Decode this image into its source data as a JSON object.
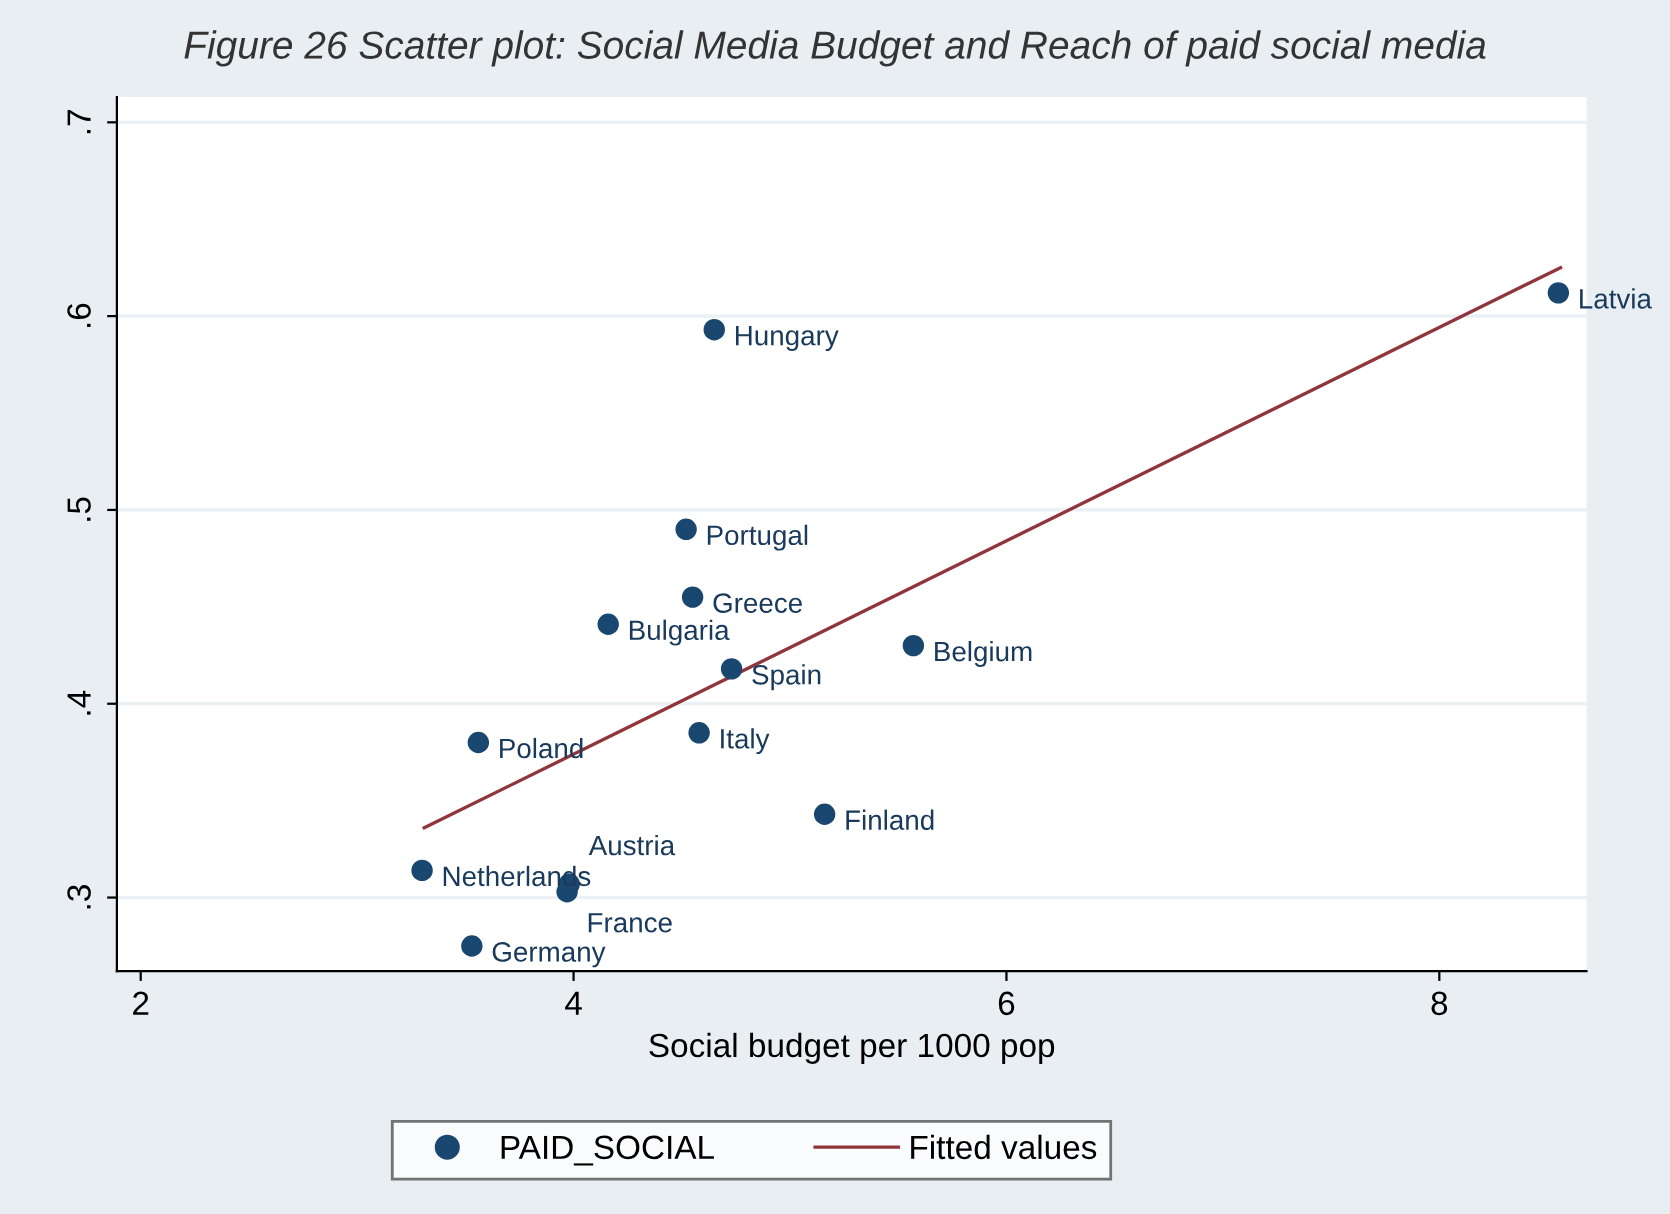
{
  "chart_data": {
    "type": "scatter",
    "title": "Figure 26 Scatter plot: Social Media Budget and Reach of paid social media",
    "xlabel": "Social budget per 1000 pop",
    "xlim": [
      1.89,
      8.68
    ],
    "xticks": [
      2,
      4,
      6,
      8
    ],
    "ylim": [
      0.262,
      0.713
    ],
    "yticks": [
      {
        "value": 0.3,
        "label": ".3"
      },
      {
        "value": 0.4,
        "label": ".4"
      },
      {
        "value": 0.5,
        "label": ".5"
      },
      {
        "value": 0.6,
        "label": ".6"
      },
      {
        "value": 0.7,
        "label": ".7"
      }
    ],
    "grid": "y",
    "legend": "bottom",
    "series": [
      {
        "name": "PAID_SOCIAL",
        "marker": "circle",
        "color": "#1a476f",
        "x": [
          4.65,
          4.52,
          4.55,
          4.16,
          5.57,
          4.73,
          3.56,
          4.58,
          5.16,
          3.3,
          3.98,
          3.97,
          3.53,
          8.55
        ],
        "values": [
          0.593,
          0.49,
          0.455,
          0.441,
          0.43,
          0.418,
          0.38,
          0.385,
          0.343,
          0.314,
          0.307,
          0.303,
          0.275,
          0.612
        ]
      },
      {
        "name": "Fitted values",
        "type": "line",
        "color": "#90353b",
        "x": [
          3.31,
          8.56
        ],
        "values": [
          0.336,
          0.625
        ]
      }
    ],
    "annotations": [
      {
        "text": "Hungary",
        "x": 4.65,
        "y": 0.593
      },
      {
        "text": "Portugal",
        "x": 4.52,
        "y": 0.49
      },
      {
        "text": "Greece",
        "x": 4.55,
        "y": 0.455
      },
      {
        "text": "Bulgaria",
        "x": 4.16,
        "y": 0.441
      },
      {
        "text": "Belgium",
        "x": 5.57,
        "y": 0.43
      },
      {
        "text": "Spain",
        "x": 4.73,
        "y": 0.418
      },
      {
        "text": "Poland",
        "x": 3.56,
        "y": 0.38
      },
      {
        "text": "Italy",
        "x": 4.58,
        "y": 0.385
      },
      {
        "text": "Finland",
        "x": 5.16,
        "y": 0.343
      },
      {
        "text": "Netherlands",
        "x": 3.3,
        "y": 0.314
      },
      {
        "text": "Austria",
        "x": 3.98,
        "y": 0.307
      },
      {
        "text": "France",
        "x": 3.97,
        "y": 0.303
      },
      {
        "text": "Germany",
        "x": 3.53,
        "y": 0.275
      },
      {
        "text": "Latvia",
        "x": 8.55,
        "y": 0.612
      }
    ]
  }
}
